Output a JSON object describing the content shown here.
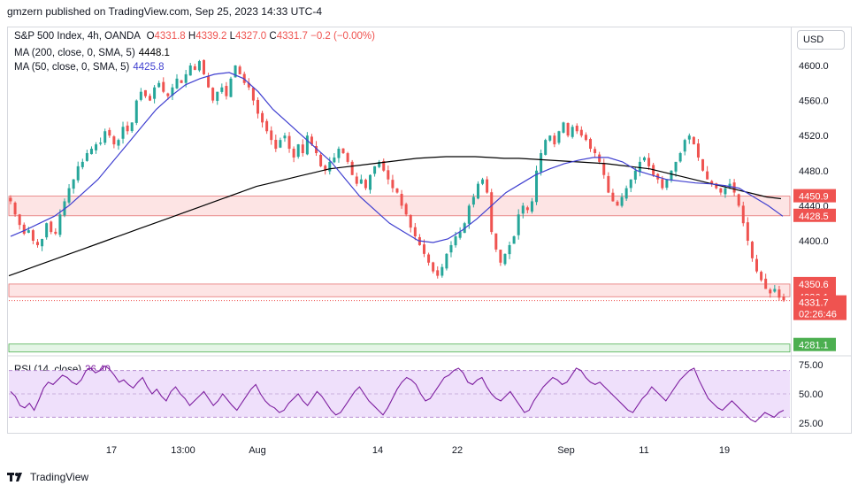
{
  "publish_line": "gmzern published on TradingView.com, Sep 25, 2023 14:33 UTC-4",
  "footer_brand": "TradingView",
  "currency_button": "USD",
  "legend": {
    "symbol": "S&P 500 Index, 4h, OANDA",
    "o_label": "O",
    "o": "4331.8",
    "h_label": "H",
    "h": "4339.2",
    "l_label": "L",
    "l": "4327.0",
    "c_label": "C",
    "c": "4331.7",
    "chg": "−0.2 (−0.00%)",
    "ma200_label": "MA (200, close, 0, SMA, 5)",
    "ma200_value": "4448.1",
    "ma50_label": "MA (50, close, 0, SMA, 5)",
    "ma50_value": "4425.8",
    "rsi_label": "RSI (14, close)",
    "rsi_value": "36.40"
  },
  "colors": {
    "up": "#26a69a",
    "down": "#ef5350",
    "ma200": "#000000",
    "ma50": "#3f3fd0",
    "rsi": "#7e1fa0",
    "rsi_band": "#efe0fb",
    "zone_red": "#fde4e4",
    "zone_green": "#e4f5e6"
  },
  "chart_data": {
    "type": "candlestick",
    "price_axis_ticks": [
      4600.0,
      4560.0,
      4520.0,
      4480.0,
      4440.0,
      4400.0
    ],
    "price_axis_labels": [
      "4600.0",
      "4560.0",
      "4520.0",
      "4480.0",
      "4440.0",
      "4400.0"
    ],
    "time_axis_labels": [
      "17",
      "13:00",
      "Aug",
      "14",
      "22",
      "Sep",
      "11",
      "19"
    ],
    "zones": [
      {
        "from": 4428.5,
        "to": 4450.9,
        "color": "red",
        "labels": [
          "4450.9",
          "4428.5"
        ]
      },
      {
        "from": 4336.1,
        "to": 4350.6,
        "color": "red",
        "labels": [
          "4350.6",
          "4336.1"
        ]
      },
      {
        "from": 4281.1,
        "to": 4281.1,
        "color": "green",
        "labels": [
          "4281.1"
        ]
      }
    ],
    "current_price": "4331.7",
    "countdown": "02:26:46",
    "closes": [
      4445,
      4430,
      4418,
      4408,
      4412,
      4400,
      4395,
      4402,
      4420,
      4410,
      4408,
      4430,
      4445,
      4460,
      4470,
      4485,
      4490,
      4500,
      4505,
      4510,
      4512,
      4525,
      4520,
      4510,
      4515,
      4530,
      4525,
      4535,
      4560,
      4570,
      4565,
      4560,
      4575,
      4580,
      4570,
      4565,
      4575,
      4585,
      4580,
      4590,
      4600,
      4595,
      4605,
      4590,
      4575,
      4560,
      4570,
      4575,
      4565,
      4585,
      4600,
      4590,
      4580,
      4575,
      4560,
      4545,
      4535,
      4525,
      4515,
      4505,
      4515,
      4520,
      4505,
      4495,
      4510,
      4500,
      4520,
      4510,
      4500,
      4485,
      4480,
      4490,
      4495,
      4505,
      4500,
      4490,
      4475,
      4465,
      4470,
      4460,
      4475,
      4485,
      4490,
      4480,
      4470,
      4460,
      4455,
      4440,
      4430,
      4415,
      4405,
      4395,
      4385,
      4375,
      4365,
      4360,
      4370,
      4385,
      4395,
      4405,
      4410,
      4420,
      4440,
      4450,
      4465,
      4470,
      4455,
      4410,
      4390,
      4375,
      4385,
      4395,
      4405,
      4430,
      4440,
      4435,
      4445,
      4480,
      4500,
      4515,
      4520,
      4510,
      4525,
      4535,
      4520,
      4530,
      4525,
      4520,
      4515,
      4505,
      4500,
      4490,
      4475,
      4455,
      4445,
      4440,
      4450,
      4460,
      4470,
      4480,
      4490,
      4495,
      4485,
      4475,
      4470,
      4460,
      4470,
      4480,
      4490,
      4500,
      4515,
      4520,
      4510,
      4495,
      4480,
      4470,
      4465,
      4460,
      4455,
      4460,
      4465,
      4455,
      4440,
      4420,
      4400,
      4380,
      4365,
      4355,
      4345,
      4340,
      4345,
      4335,
      4332
    ],
    "ma200": [
      4360,
      4366,
      4372,
      4378,
      4384,
      4390,
      4396,
      4402,
      4408,
      4414,
      4420,
      4426,
      4432,
      4438,
      4444,
      4450,
      4456,
      4462,
      4466,
      4470,
      4474,
      4478,
      4482,
      4484,
      4486,
      4488,
      4490,
      4492,
      4494,
      4495,
      4496,
      4496,
      4496,
      4495,
      4494,
      4494,
      4493,
      4492,
      4491,
      4490,
      4489,
      4488,
      4486,
      4484,
      4482,
      4478,
      4474,
      4470,
      4466,
      4462,
      4458,
      4454,
      4450,
      4448
    ],
    "ma50": [
      4405,
      4412,
      4420,
      4428,
      4440,
      4455,
      4470,
      4490,
      4510,
      4530,
      4550,
      4565,
      4578,
      4585,
      4590,
      4592,
      4585,
      4570,
      4550,
      4535,
      4520,
      4505,
      4490,
      4470,
      4450,
      4435,
      4420,
      4410,
      4400,
      4398,
      4402,
      4412,
      4425,
      4440,
      4455,
      4465,
      4475,
      4482,
      4488,
      4492,
      4495,
      4495,
      4490,
      4480,
      4475,
      4470,
      4468,
      4466,
      4465,
      4463,
      4460,
      4450,
      4440,
      4428
    ],
    "rsi": {
      "ticks": [
        75.0,
        50.0,
        25.0
      ],
      "tick_labels": [
        "75.00",
        "50.00",
        "25.00"
      ],
      "band": [
        30,
        70
      ],
      "values": [
        52,
        48,
        40,
        38,
        42,
        36,
        45,
        55,
        60,
        58,
        62,
        66,
        64,
        60,
        58,
        62,
        70,
        72,
        68,
        70,
        74,
        71,
        66,
        60,
        62,
        58,
        55,
        60,
        64,
        56,
        50,
        54,
        48,
        44,
        52,
        56,
        50,
        46,
        40,
        44,
        48,
        52,
        46,
        40,
        44,
        50,
        45,
        40,
        36,
        42,
        48,
        54,
        58,
        50,
        44,
        40,
        38,
        34,
        36,
        42,
        46,
        50,
        44,
        40,
        46,
        52,
        48,
        42,
        36,
        32,
        34,
        40,
        46,
        52,
        56,
        50,
        44,
        40,
        36,
        32,
        38,
        46,
        54,
        60,
        64,
        62,
        58,
        50,
        44,
        46,
        52,
        58,
        64,
        66,
        70,
        72,
        68,
        60,
        58,
        62,
        64,
        56,
        50,
        46,
        44,
        48,
        52,
        46,
        40,
        34,
        36,
        44,
        50,
        56,
        60,
        64,
        62,
        58,
        60,
        66,
        72,
        70,
        64,
        60,
        58,
        60,
        56,
        52,
        48,
        44,
        40,
        36,
        34,
        40,
        46,
        50,
        56,
        52,
        48,
        44,
        50,
        56,
        62,
        66,
        70,
        72,
        62,
        54,
        46,
        42,
        38,
        36,
        40,
        44,
        40,
        36,
        32,
        28,
        26,
        30,
        34,
        32,
        30,
        34,
        36
      ]
    }
  }
}
